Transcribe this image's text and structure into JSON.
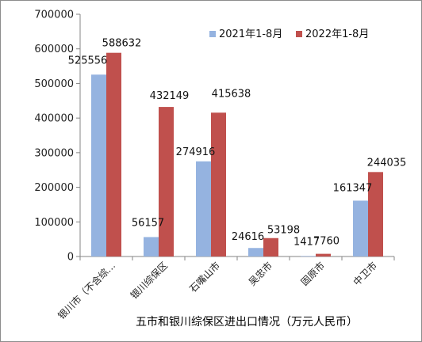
{
  "chart_data": {
    "type": "bar",
    "title": "五市和银川综保区进出口情况（万元人民币）",
    "xlabel": "",
    "ylabel": "",
    "categories": [
      "银川市（不含综…",
      "银川综保区",
      "石嘴山市",
      "吴忠市",
      "固原市",
      "中卫市"
    ],
    "series": [
      {
        "name": "2021年1-8月",
        "color": "#95b3e0",
        "values": [
          525556,
          56157,
          274916,
          24616,
          1417,
          161347
        ]
      },
      {
        "name": "2022年1-8月",
        "color": "#c0504d",
        "values": [
          588632,
          432149,
          415638,
          53198,
          7760,
          244035
        ]
      }
    ],
    "ylim": [
      0,
      700000
    ],
    "yticks": [
      0,
      100000,
      200000,
      300000,
      400000,
      500000,
      600000,
      700000
    ],
    "grid": false,
    "legend_position": "top-right"
  }
}
